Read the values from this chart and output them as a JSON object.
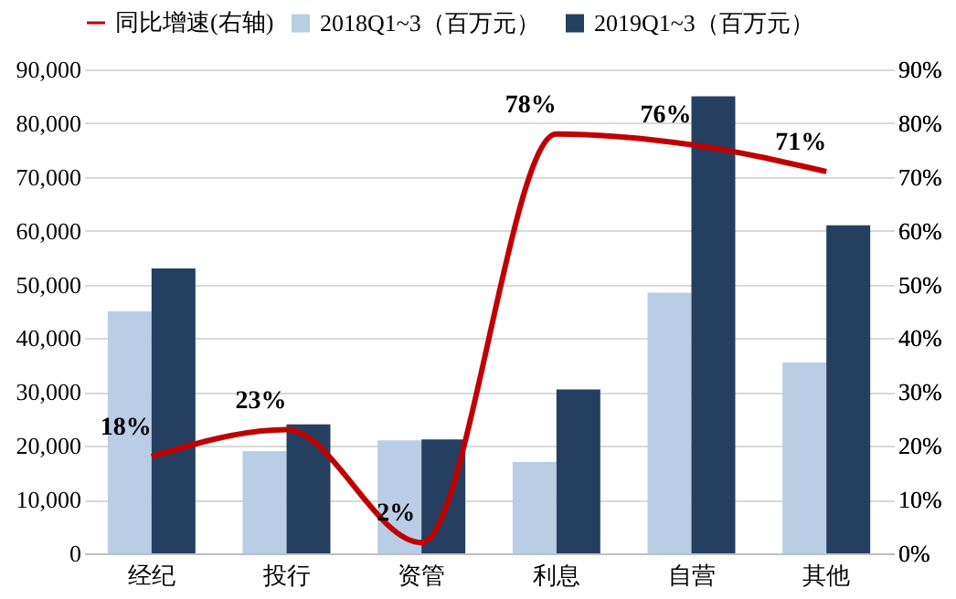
{
  "chart_data": {
    "type": "bar",
    "categories": [
      "经纪",
      "投行",
      "资管",
      "利息",
      "自营",
      "其他"
    ],
    "series": [
      {
        "name": "2018Q1~3（百万元）",
        "color": "#b9cde5",
        "values": [
          45000,
          19000,
          21000,
          17000,
          48500,
          35500
        ]
      },
      {
        "name": "2019Q1~3（百万元）",
        "color": "#253f60",
        "values": [
          53000,
          24000,
          21200,
          30500,
          85000,
          61000
        ]
      },
      {
        "name": "同比增速(右轴)",
        "type": "line",
        "axis": "y2",
        "color": "#c00000",
        "values": [
          18,
          23,
          2,
          78,
          76,
          71
        ],
        "value_labels": [
          "18%",
          "23%",
          "2%",
          "78%",
          "76%",
          "71%"
        ]
      }
    ],
    "ylim": [
      0,
      90000
    ],
    "yticks": [
      {
        "value": 0,
        "label": "0"
      },
      {
        "value": 10000,
        "label": "10,000"
      },
      {
        "value": 20000,
        "label": "20,000"
      },
      {
        "value": 30000,
        "label": "30,000"
      },
      {
        "value": 40000,
        "label": "40,000"
      },
      {
        "value": 50000,
        "label": "50,000"
      },
      {
        "value": 60000,
        "label": "60,000"
      },
      {
        "value": 70000,
        "label": "70,000"
      },
      {
        "value": 80000,
        "label": "80,000"
      },
      {
        "value": 90000,
        "label": "90,000"
      }
    ],
    "y2lim": [
      0,
      90
    ],
    "y2ticks": [
      {
        "value": 0,
        "label": "0%"
      },
      {
        "value": 10,
        "label": "10%"
      },
      {
        "value": 20,
        "label": "20%"
      },
      {
        "value": 30,
        "label": "30%"
      },
      {
        "value": 40,
        "label": "40%"
      },
      {
        "value": 50,
        "label": "50%"
      },
      {
        "value": 60,
        "label": "60%"
      },
      {
        "value": 70,
        "label": "70%"
      },
      {
        "value": 80,
        "label": "80%"
      },
      {
        "value": 90,
        "label": "90%"
      }
    ],
    "grid": "y",
    "legend": "top",
    "line_style": "solid",
    "marker": "none"
  }
}
